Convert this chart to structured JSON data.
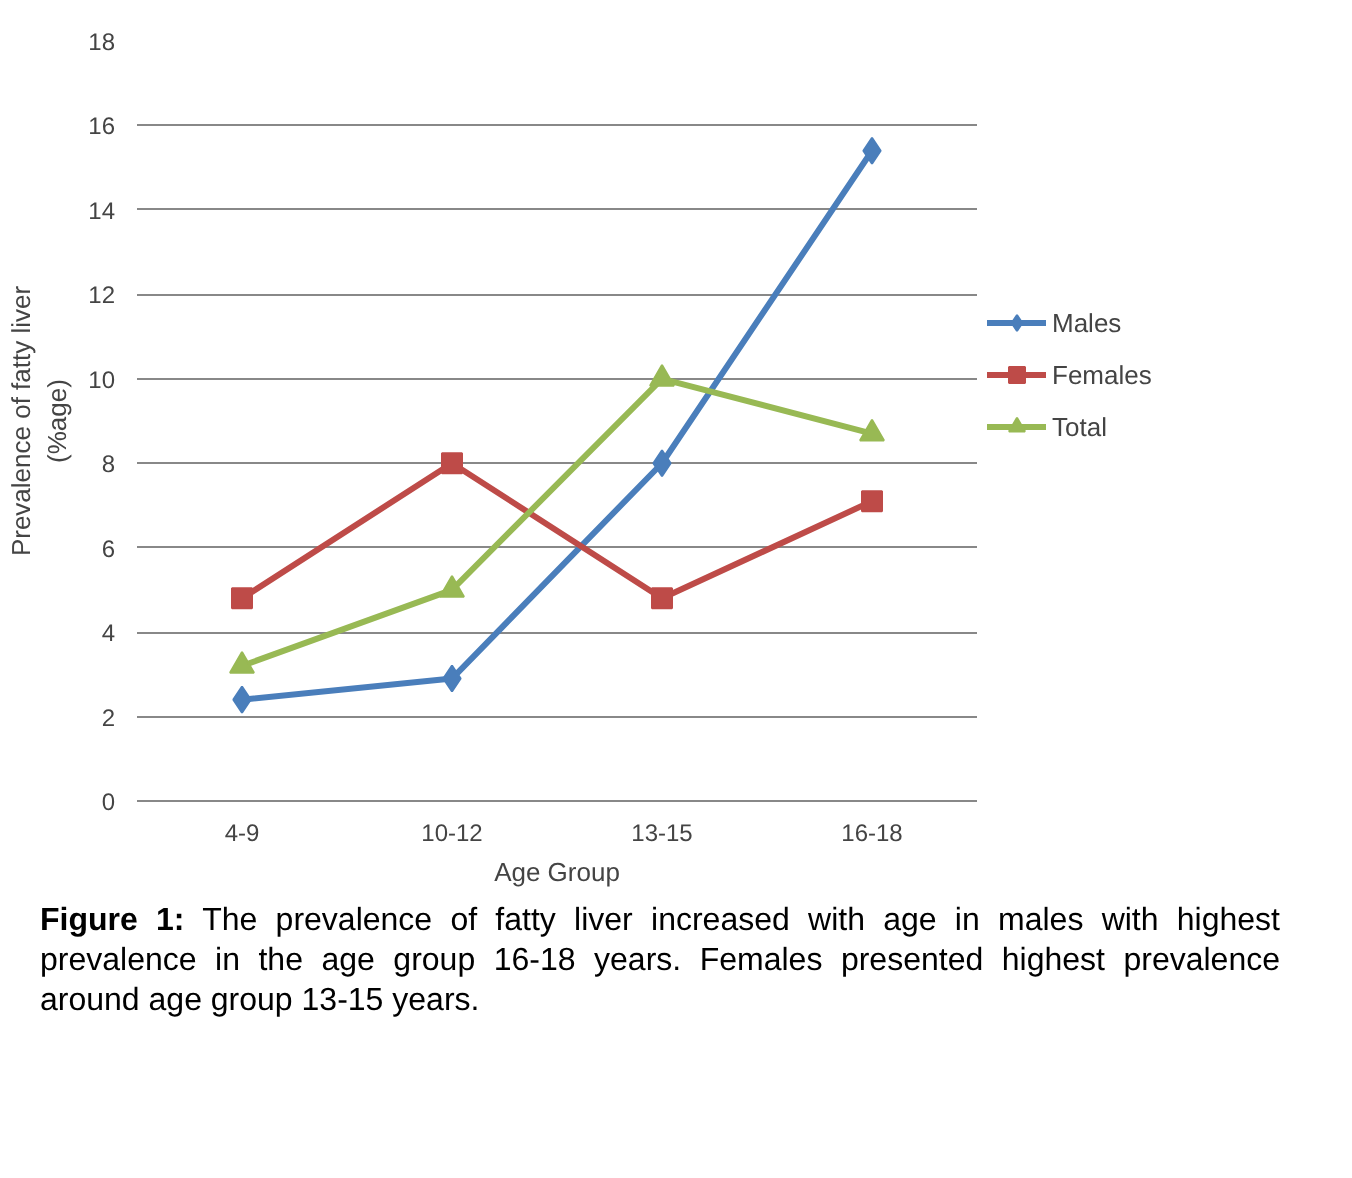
{
  "chart_data": {
    "type": "line",
    "xlabel": "Age Group",
    "ylabel": "Prevalence of fatty liver\n(%age)",
    "categories": [
      "4-9",
      "10-12",
      "13-15",
      "16-18"
    ],
    "series": [
      {
        "name": "Males",
        "color": "#4a7ebb",
        "marker": "diamond",
        "values": [
          2.4,
          2.9,
          8,
          15.4
        ]
      },
      {
        "name": "Females",
        "color": "#be4b48",
        "marker": "square",
        "values": [
          4.8,
          8,
          4.8,
          7.1
        ]
      },
      {
        "name": "Total",
        "color": "#98b954",
        "marker": "triangle",
        "values": [
          3.2,
          5,
          10,
          8.7
        ]
      }
    ],
    "ylim": [
      0,
      18
    ],
    "yticks": [
      0,
      2,
      4,
      6,
      8,
      10,
      12,
      14,
      16,
      18
    ],
    "grid": "y",
    "legend": "right",
    "annotations": [
      "Figure 1: The prevalence of fatty liver increased with age in males with highest prevalence in the age group 16-18 years. Females presented highest prevalence around age group 13-15 years."
    ]
  }
}
